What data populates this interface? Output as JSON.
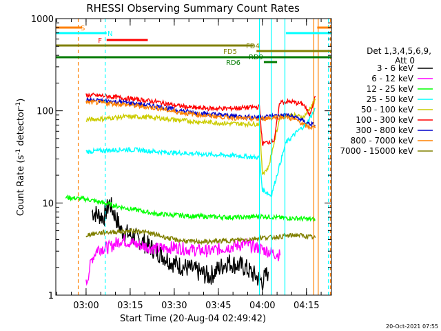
{
  "chart_data": {
    "type": "line",
    "title": "RHESSI Observing Summary Count Rates",
    "xlabel": "Start Time (20-Aug-04 02:49:42)",
    "ylabel_main": "Count Rate (s",
    "ylabel_sup1": "-1",
    "ylabel_mid": " detector",
    "ylabel_sup2": "-1",
    "ylabel_end": ")",
    "yscale": "log",
    "ylim": [
      1,
      1000
    ],
    "xlim": [
      "02:49:42",
      "04:23:30"
    ],
    "x_ticks": [
      "03:00",
      "03:15",
      "03:30",
      "03:45",
      "04:00",
      "04:15"
    ],
    "y_ticks": [
      "1",
      "10",
      "100",
      "1000"
    ],
    "legend_title": [
      "Det 1,3,4,5,6,9,",
      "Att 0"
    ],
    "legend_placement": "right",
    "series": [
      {
        "name": "3 - 6 keV",
        "color": "#000000",
        "points": [
          [
            "03:02",
            8
          ],
          [
            "03:06",
            7
          ],
          [
            "03:08",
            10
          ],
          [
            "03:12",
            5
          ],
          [
            "03:18",
            4
          ],
          [
            "03:24",
            3
          ],
          [
            "03:30",
            2.2
          ],
          [
            "03:36",
            1.9
          ],
          [
            "03:42",
            1.6
          ],
          [
            "03:48",
            2.3
          ],
          [
            "03:54",
            2.0
          ],
          [
            "04:00",
            1.4
          ],
          [
            "04:02",
            1.8
          ]
        ]
      },
      {
        "name": "6 - 12 keV",
        "color": "#ff00ff",
        "points": [
          [
            "03:00",
            1.3
          ],
          [
            "03:02",
            2.5
          ],
          [
            "03:04",
            3.2
          ],
          [
            "03:08",
            3.3
          ],
          [
            "03:12",
            4.0
          ],
          [
            "03:18",
            3.5
          ],
          [
            "03:24",
            3.2
          ],
          [
            "03:30",
            3.3
          ],
          [
            "03:36",
            3.1
          ],
          [
            "03:42",
            3.0
          ],
          [
            "03:48",
            3.3
          ],
          [
            "03:54",
            3.6
          ],
          [
            "04:02",
            3.0
          ],
          [
            "04:06",
            2.7
          ]
        ]
      },
      {
        "name": "12 - 25 keV",
        "color": "#00ff00",
        "points": [
          [
            "02:53",
            11.5
          ],
          [
            "03:00",
            11
          ],
          [
            "03:06",
            10
          ],
          [
            "03:12",
            9
          ],
          [
            "03:18",
            8.3
          ],
          [
            "03:24",
            7.6
          ],
          [
            "03:30",
            7.4
          ],
          [
            "03:36",
            7.2
          ],
          [
            "03:42",
            7.1
          ],
          [
            "03:48",
            7.0
          ],
          [
            "03:54",
            7.0
          ],
          [
            "04:00",
            7.2
          ],
          [
            "04:06",
            6.9
          ],
          [
            "04:12",
            6.8
          ],
          [
            "04:18",
            6.6
          ]
        ]
      },
      {
        "name": "25 - 50 keV",
        "color": "#00ffff",
        "points": [
          [
            "03:00",
            36
          ],
          [
            "03:06",
            37
          ],
          [
            "03:12",
            38
          ],
          [
            "03:18",
            37.5
          ],
          [
            "03:24",
            36
          ],
          [
            "03:30",
            35
          ],
          [
            "03:36",
            34.5
          ],
          [
            "03:42",
            33.5
          ],
          [
            "03:48",
            33
          ],
          [
            "03:54",
            32
          ],
          [
            "03:59",
            31
          ],
          [
            "04:00",
            14
          ],
          [
            "04:03",
            12
          ],
          [
            "04:08",
            45
          ],
          [
            "04:12",
            60
          ],
          [
            "04:15",
            72
          ],
          [
            "04:18",
            105
          ]
        ]
      },
      {
        "name": "50 - 100 keV",
        "color": "#cccc00",
        "points": [
          [
            "03:00",
            80
          ],
          [
            "03:06",
            82
          ],
          [
            "03:12",
            86
          ],
          [
            "03:18",
            86
          ],
          [
            "03:24",
            84
          ],
          [
            "03:30",
            80
          ],
          [
            "03:36",
            77
          ],
          [
            "03:42",
            75
          ],
          [
            "03:48",
            73
          ],
          [
            "03:54",
            72
          ],
          [
            "03:59",
            72
          ],
          [
            "04:00",
            21
          ],
          [
            "04:02",
            24
          ],
          [
            "04:06",
            86
          ],
          [
            "04:10",
            90
          ],
          [
            "04:14",
            85
          ],
          [
            "04:18",
            130
          ]
        ]
      },
      {
        "name": "100 - 300 keV",
        "color": "#ff0000",
        "points": [
          [
            "03:00",
            148
          ],
          [
            "03:06",
            145
          ],
          [
            "03:12",
            138
          ],
          [
            "03:18",
            132
          ],
          [
            "03:24",
            125
          ],
          [
            "03:30",
            115
          ],
          [
            "03:36",
            108
          ],
          [
            "03:42",
            106
          ],
          [
            "03:48",
            106
          ],
          [
            "03:54",
            108
          ],
          [
            "03:59",
            110
          ],
          [
            "04:00",
            44
          ],
          [
            "04:04",
            48
          ],
          [
            "04:06",
            125
          ],
          [
            "04:10",
            125
          ],
          [
            "04:14",
            118
          ],
          [
            "04:16",
            90
          ],
          [
            "04:18",
            145
          ]
        ]
      },
      {
        "name": "300 - 800 keV",
        "color": "#0000cc",
        "points": [
          [
            "03:00",
            130
          ],
          [
            "03:06",
            128
          ],
          [
            "03:12",
            124
          ],
          [
            "03:18",
            118
          ],
          [
            "03:24",
            112
          ],
          [
            "03:30",
            103
          ],
          [
            "03:36",
            96
          ],
          [
            "03:42",
            92
          ],
          [
            "03:48",
            89
          ],
          [
            "03:54",
            86
          ],
          [
            "03:59",
            85
          ],
          [
            "04:04",
            88
          ],
          [
            "04:08",
            90
          ],
          [
            "04:12",
            84
          ],
          [
            "04:15",
            74
          ],
          [
            "04:18",
            70
          ]
        ]
      },
      {
        "name": "800 - 7000 keV",
        "color": "#ff8000",
        "points": [
          [
            "03:00",
            124
          ],
          [
            "03:06",
            122
          ],
          [
            "03:12",
            118
          ],
          [
            "03:18",
            112
          ],
          [
            "03:24",
            107
          ],
          [
            "03:30",
            98
          ],
          [
            "03:36",
            92
          ],
          [
            "03:42",
            88
          ],
          [
            "03:48",
            85
          ],
          [
            "03:54",
            82
          ],
          [
            "03:59",
            81
          ],
          [
            "04:04",
            85
          ],
          [
            "04:08",
            86
          ],
          [
            "04:12",
            78
          ],
          [
            "04:15",
            68
          ],
          [
            "04:18",
            65
          ]
        ]
      },
      {
        "name": "7000 - 15000 keV",
        "color": "#808000",
        "points": [
          [
            "03:00",
            4.5
          ],
          [
            "03:06",
            4.8
          ],
          [
            "03:12",
            4.9
          ],
          [
            "03:18",
            5.0
          ],
          [
            "03:24",
            4.5
          ],
          [
            "03:30",
            4.0
          ],
          [
            "03:36",
            3.8
          ],
          [
            "03:42",
            3.8
          ],
          [
            "03:48",
            3.9
          ],
          [
            "03:54",
            4.0
          ],
          [
            "04:00",
            4.2
          ],
          [
            "04:06",
            4.3
          ],
          [
            "04:12",
            4.5
          ],
          [
            "04:18",
            4.2
          ]
        ]
      }
    ],
    "flag_bars": [
      {
        "label": "S",
        "color": "#ff8000",
        "segments": [
          [
            "02:49:42",
            "02:58:40"
          ],
          [
            "04:18:40",
            "04:23:30"
          ]
        ]
      },
      {
        "label": "N",
        "color": "#00ffff",
        "segments": [
          [
            "02:49:42",
            "03:07:00"
          ],
          [
            "04:08:00",
            "04:23:30"
          ]
        ]
      },
      {
        "label": "F",
        "color": "#ff0000",
        "segments": [
          [
            "03:07:00",
            "03:21:00"
          ]
        ]
      },
      {
        "label": "FD4",
        "color": "#808000",
        "segments": [
          [
            "02:49:42",
            "03:57:00"
          ]
        ]
      },
      {
        "label": "FD5",
        "color": "#808000",
        "segments": [
          [
            "03:58:00",
            "04:23:30"
          ]
        ]
      },
      {
        "label": "RD9",
        "color": "#007a00",
        "segments": [
          [
            "02:49:42",
            "04:23:30"
          ]
        ]
      },
      {
        "label": "RD6",
        "color": "#007a00",
        "segments": [
          [
            "04:00:30",
            "04:05:00"
          ]
        ]
      }
    ],
    "vlines": [
      {
        "time": "02:57:20",
        "color": "#ff8000",
        "style": "dashed"
      },
      {
        "time": "03:06:30",
        "color": "#00ffff",
        "style": "dashed"
      },
      {
        "time": "03:59:00",
        "color": "#00ffff",
        "style": "solid"
      },
      {
        "time": "04:03:00",
        "color": "#00ffff",
        "style": "solid"
      },
      {
        "time": "04:07:40",
        "color": "#00ffff",
        "style": "solid"
      },
      {
        "time": "04:17:30",
        "color": "#ff8000",
        "style": "solid"
      },
      {
        "time": "04:19:00",
        "color": "#ff8000",
        "style": "solid"
      },
      {
        "time": "04:22:30",
        "color": "#00ffff",
        "style": "dashed"
      },
      {
        "time": "04:23:10",
        "color": "#ff8000",
        "style": "dashed"
      }
    ],
    "timestamp": "20-Oct-2021 07:55"
  }
}
